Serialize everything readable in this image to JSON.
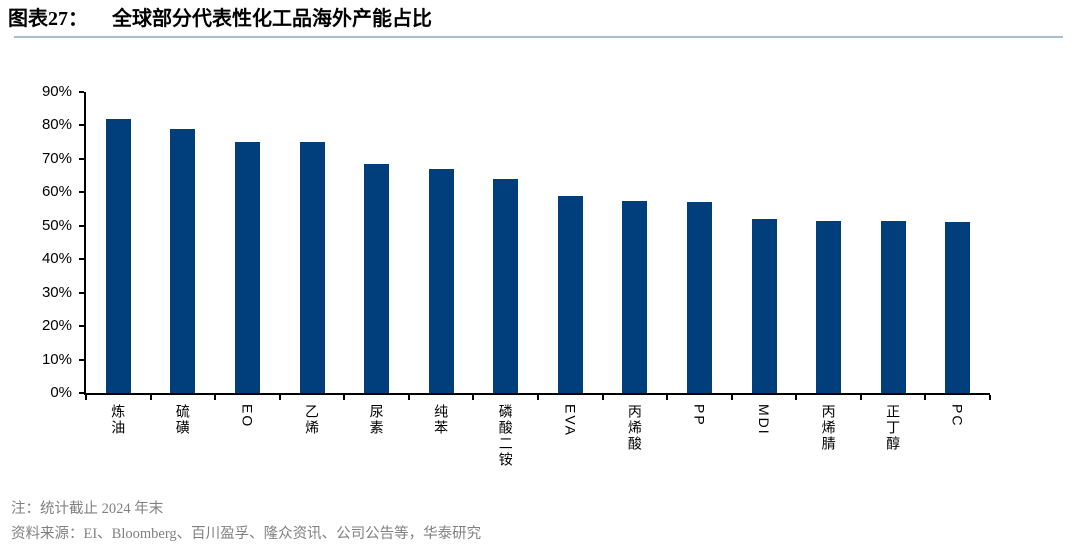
{
  "figure": {
    "label": "图表27：",
    "title": "全球部分代表性化工品海外产能占比"
  },
  "chart_data": {
    "type": "bar",
    "title": "全球部分代表性化工品海外产能占比",
    "categories": [
      "炼油",
      "硫磺",
      "EO",
      "乙烯",
      "尿素",
      "纯苯",
      "磷酸二铵",
      "EVA",
      "丙烯酸",
      "PP",
      "MDI",
      "丙烯腈",
      "正丁醇",
      "PC"
    ],
    "values": [
      82,
      79,
      75,
      75,
      68.5,
      67,
      64,
      59,
      57.5,
      57,
      52,
      51.5,
      51.5,
      51
    ],
    "xlabel": "",
    "ylabel": "",
    "ylim": [
      0,
      90
    ],
    "ytick_step": 10,
    "ytick_labels": [
      "0%",
      "10%",
      "20%",
      "30%",
      "40%",
      "50%",
      "60%",
      "70%",
      "80%",
      "90%"
    ],
    "grid": false,
    "legend": "none",
    "bar_color": "#003e7c"
  },
  "notes": {
    "note_line": "注：统计截止 2024 年末",
    "source_line": "资料来源：EI、Bloomberg、百川盈孚、隆众资讯、公司公告等，华泰研究"
  },
  "colors": {
    "bar": "#003e7c",
    "axis": "#000000",
    "title_rule": "#a8bdd0",
    "note_text": "#808080",
    "title_text": "#000000"
  }
}
